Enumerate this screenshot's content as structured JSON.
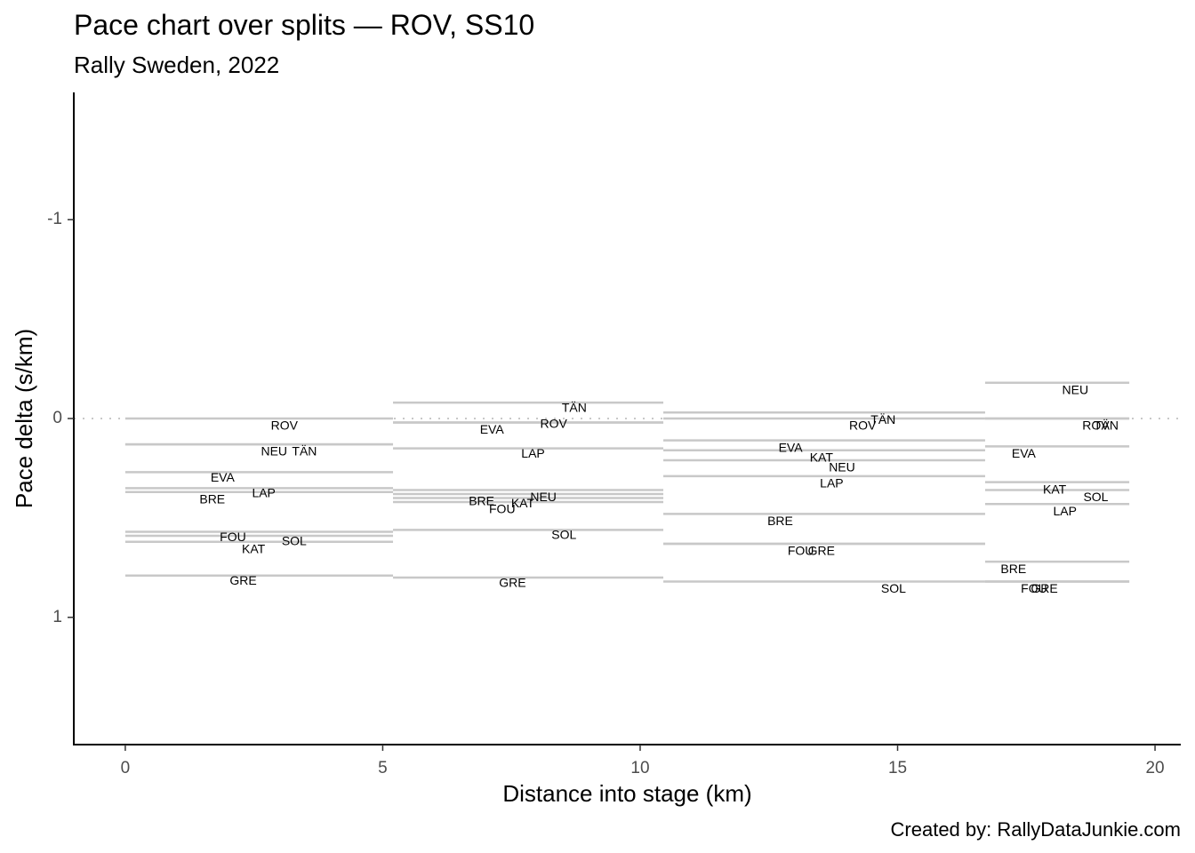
{
  "title": "Pace chart over splits — ROV, SS10",
  "subtitle": "Rally Sweden, 2022",
  "caption": "Created by: RallyDataJunkie.com",
  "colors": {
    "segment": "#c8c8c8",
    "reference": "#c8c8c8",
    "axis": "#000000",
    "tick_text": "#4d4d4d"
  },
  "chart_data": {
    "type": "line",
    "xlabel": "Distance into stage (km)",
    "ylabel": "Pace delta (s/km)",
    "xlim": [
      -1,
      20.5
    ],
    "ylim": [
      1.64,
      -1.64
    ],
    "y_reversed": true,
    "x_ticks": [
      0,
      5,
      10,
      15,
      20
    ],
    "x_tick_labels": [
      "0",
      "5",
      "10",
      "15",
      "20"
    ],
    "y_ticks": [
      -1,
      0,
      1
    ],
    "y_tick_labels": [
      "-1",
      "0",
      "1"
    ],
    "reference_line": {
      "y": 0,
      "style": "dotted"
    },
    "grid": false,
    "legend": "none",
    "splits": [
      {
        "start": 0,
        "end": 5.2,
        "drivers": [
          {
            "name": "ROV",
            "pace": 0.0,
            "label_x": 3.09,
            "label_y": 0.04
          },
          {
            "name": "NEU",
            "pace": 0.13,
            "label_x": 2.89,
            "label_y": 0.17
          },
          {
            "name": "TÄN",
            "pace": 0.13,
            "label_x": 3.48,
            "label_y": 0.17
          },
          {
            "name": "EVA",
            "pace": 0.27,
            "label_x": 1.89,
            "label_y": 0.3
          },
          {
            "name": "BRE",
            "pace": 0.35,
            "label_x": 1.69,
            "label_y": 0.41
          },
          {
            "name": "LAP",
            "pace": 0.37,
            "label_x": 2.69,
            "label_y": 0.38
          },
          {
            "name": "FOU",
            "pace": 0.57,
            "label_x": 2.09,
            "label_y": 0.6
          },
          {
            "name": "KAT",
            "pace": 0.59,
            "label_x": 2.49,
            "label_y": 0.66
          },
          {
            "name": "SOL",
            "pace": 0.62,
            "label_x": 3.28,
            "label_y": 0.62
          },
          {
            "name": "GRE",
            "pace": 0.79,
            "label_x": 2.29,
            "label_y": 0.82
          }
        ]
      },
      {
        "start": 5.2,
        "end": 10.45,
        "drivers": [
          {
            "name": "TÄN",
            "pace": -0.08,
            "label_x": 8.72,
            "label_y": -0.05
          },
          {
            "name": "ROV",
            "pace": 0.02,
            "label_x": 8.32,
            "label_y": 0.03
          },
          {
            "name": "EVA",
            "pace": 0.02,
            "label_x": 7.12,
            "label_y": 0.06
          },
          {
            "name": "LAP",
            "pace": 0.15,
            "label_x": 7.92,
            "label_y": 0.18
          },
          {
            "name": "NEU",
            "pace": 0.36,
            "label_x": 8.12,
            "label_y": 0.4
          },
          {
            "name": "BRE",
            "pace": 0.38,
            "label_x": 6.92,
            "label_y": 0.42
          },
          {
            "name": "KAT",
            "pace": 0.4,
            "label_x": 7.72,
            "label_y": 0.43
          },
          {
            "name": "FOU",
            "pace": 0.42,
            "label_x": 7.32,
            "label_y": 0.46
          },
          {
            "name": "SOL",
            "pace": 0.56,
            "label_x": 8.52,
            "label_y": 0.59
          },
          {
            "name": "GRE",
            "pace": 0.8,
            "label_x": 7.52,
            "label_y": 0.83
          }
        ]
      },
      {
        "start": 10.45,
        "end": 16.7,
        "drivers": [
          {
            "name": "TÄN",
            "pace": -0.03,
            "label_x": 14.72,
            "label_y": 0.01
          },
          {
            "name": "ROV",
            "pace": 0.0,
            "label_x": 14.32,
            "label_y": 0.04
          },
          {
            "name": "EVA",
            "pace": 0.11,
            "label_x": 12.92,
            "label_y": 0.15
          },
          {
            "name": "KAT",
            "pace": 0.16,
            "label_x": 13.52,
            "label_y": 0.2
          },
          {
            "name": "NEU",
            "pace": 0.21,
            "label_x": 13.92,
            "label_y": 0.25
          },
          {
            "name": "LAP",
            "pace": 0.29,
            "label_x": 13.72,
            "label_y": 0.33
          },
          {
            "name": "BRE",
            "pace": 0.48,
            "label_x": 12.72,
            "label_y": 0.52
          },
          {
            "name": "FOU",
            "pace": 0.63,
            "label_x": 13.12,
            "label_y": 0.67
          },
          {
            "name": "GRE",
            "pace": 0.63,
            "label_x": 13.52,
            "label_y": 0.67
          },
          {
            "name": "SOL",
            "pace": 0.82,
            "label_x": 14.92,
            "label_y": 0.86
          }
        ]
      },
      {
        "start": 16.7,
        "end": 19.5,
        "drivers": [
          {
            "name": "NEU",
            "pace": -0.18,
            "label_x": 18.45,
            "label_y": -0.14
          },
          {
            "name": "ROV",
            "pace": 0.0,
            "label_x": 18.85,
            "label_y": 0.04
          },
          {
            "name": "TÄN",
            "pace": 0.0,
            "label_x": 19.05,
            "label_y": 0.04
          },
          {
            "name": "EVA",
            "pace": 0.14,
            "label_x": 17.45,
            "label_y": 0.18
          },
          {
            "name": "KAT",
            "pace": 0.32,
            "label_x": 18.05,
            "label_y": 0.36
          },
          {
            "name": "SOL",
            "pace": 0.36,
            "label_x": 18.85,
            "label_y": 0.4
          },
          {
            "name": "LAP",
            "pace": 0.43,
            "label_x": 18.25,
            "label_y": 0.47
          },
          {
            "name": "BRE",
            "pace": 0.72,
            "label_x": 17.25,
            "label_y": 0.76
          },
          {
            "name": "FOU",
            "pace": 0.82,
            "label_x": 17.65,
            "label_y": 0.86
          },
          {
            "name": "GRE",
            "pace": 0.82,
            "label_x": 17.85,
            "label_y": 0.86
          }
        ]
      }
    ]
  }
}
